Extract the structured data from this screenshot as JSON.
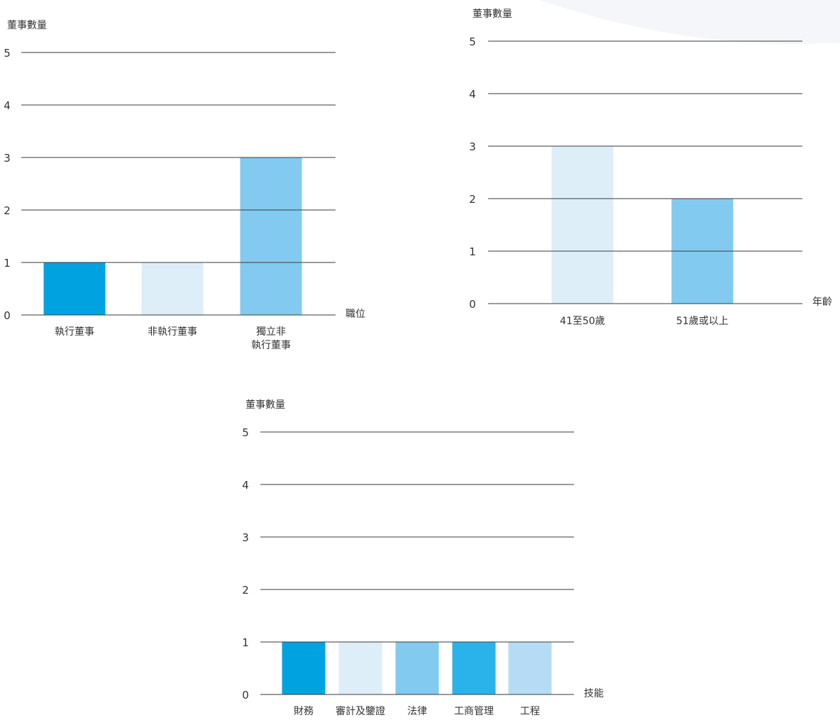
{
  "chart_data": [
    {
      "type": "bar",
      "ylabel": "董事數量",
      "xlabel": "職位",
      "ylim": [
        0,
        5
      ],
      "yticks": [
        "0",
        "1",
        "2",
        "3",
        "4",
        "5"
      ],
      "grid": true,
      "categories": [
        {
          "label": [
            "執行董事"
          ],
          "value": 1,
          "color": "#00a3e0"
        },
        {
          "label": [
            "非執行董事"
          ],
          "value": 1,
          "color": "#ddeef9"
        },
        {
          "label": [
            "獨立非",
            "執行董事"
          ],
          "value": 3,
          "color": "#82caef"
        }
      ]
    },
    {
      "type": "bar",
      "ylabel": "董事數量",
      "xlabel": "年齡",
      "ylim": [
        0,
        5
      ],
      "yticks": [
        "0",
        "1",
        "2",
        "3",
        "4",
        "5"
      ],
      "grid": true,
      "categories": [
        {
          "label": [
            "41至50歲"
          ],
          "value": 3,
          "color": "#ddeef9"
        },
        {
          "label": [
            "51歲或以上"
          ],
          "value": 2,
          "color": "#82caef"
        }
      ]
    },
    {
      "type": "bar",
      "ylabel": "董事數量",
      "xlabel": "技能",
      "ylim": [
        0,
        5
      ],
      "yticks": [
        "0",
        "1",
        "2",
        "3",
        "4",
        "5"
      ],
      "grid": true,
      "categories": [
        {
          "label": [
            "財務"
          ],
          "value": 1,
          "color": "#00a3e0"
        },
        {
          "label": [
            "審計及鑒證"
          ],
          "value": 1,
          "color": "#ddeef9"
        },
        {
          "label": [
            "法律"
          ],
          "value": 1,
          "color": "#82caef"
        },
        {
          "label": [
            "工商管理"
          ],
          "value": 1,
          "color": "#29b3ea"
        },
        {
          "label": [
            "工程"
          ],
          "value": 1,
          "color": "#b5dcf4"
        }
      ]
    }
  ]
}
